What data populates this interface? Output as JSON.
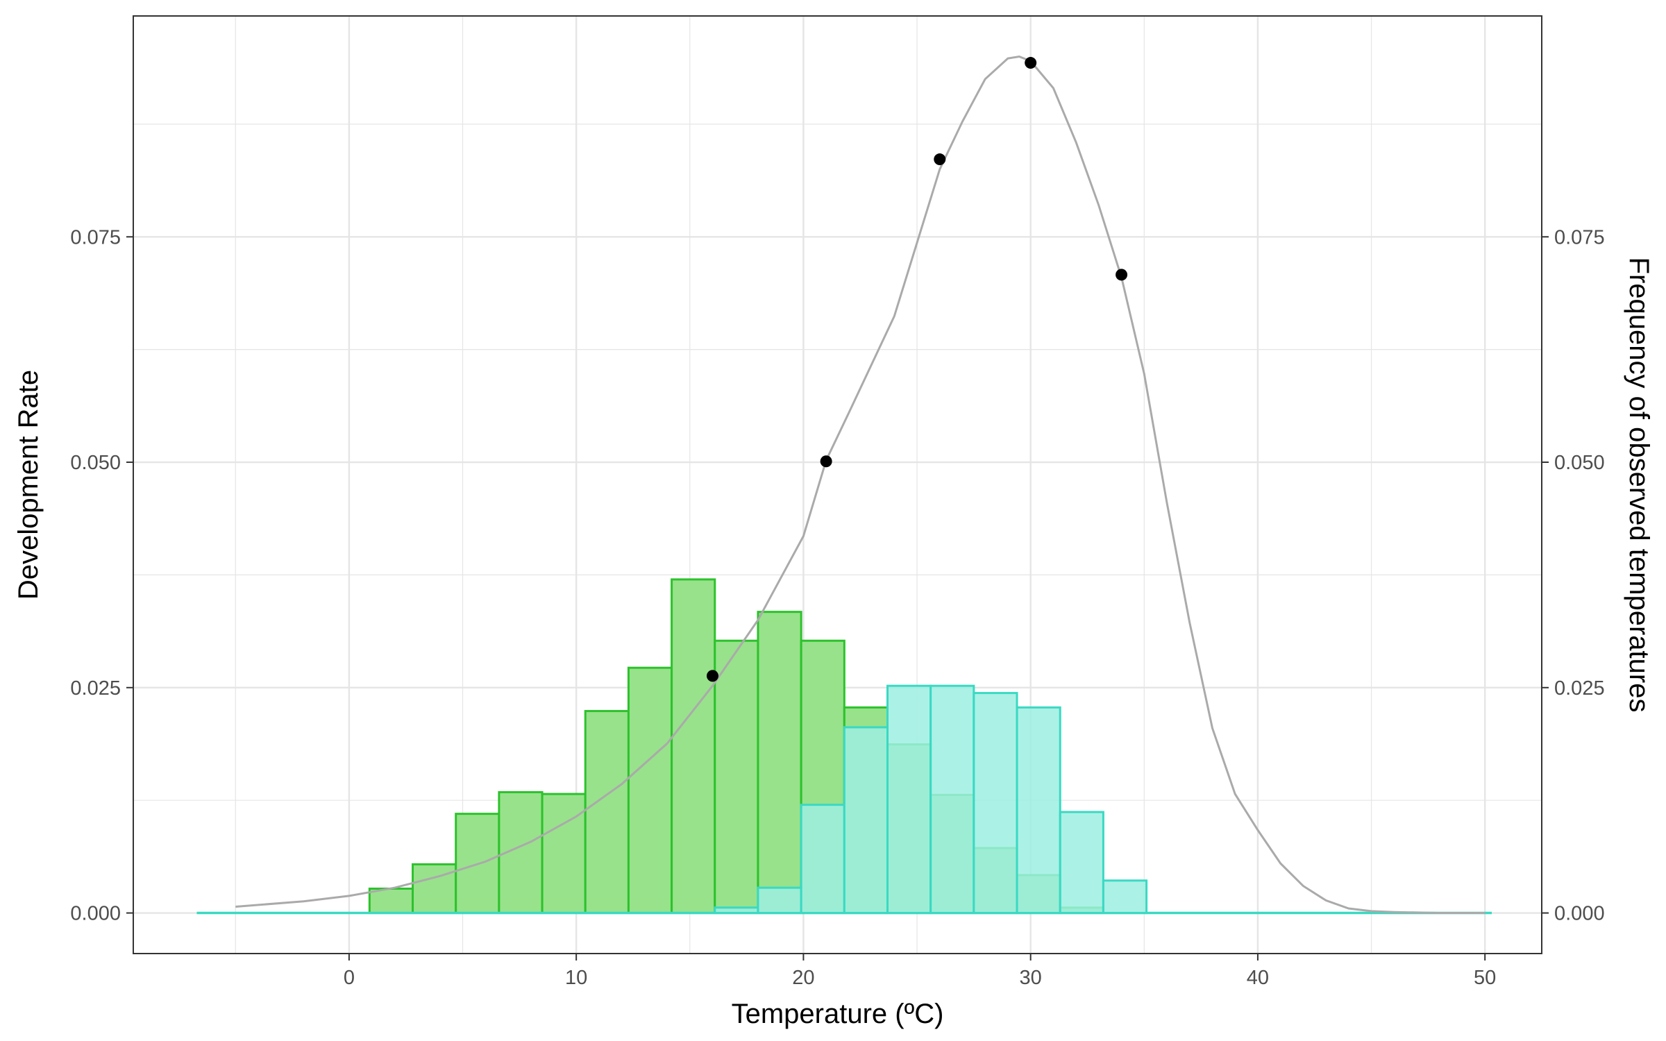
{
  "chart_data": {
    "type": "bar",
    "xlabel": "Temperature (ºC)",
    "ylabel": "Development Rate",
    "y2label": "Frequency of observed temperatures",
    "xlim": [
      -9.5,
      52.5
    ],
    "ylim": [
      -0.0045,
      0.0995
    ],
    "x_ticks": [
      0,
      10,
      20,
      30,
      40,
      50
    ],
    "y_ticks": [
      0.0,
      0.025,
      0.05,
      0.075
    ],
    "y_tick_labels": [
      "0.000",
      "0.025",
      "0.050",
      "0.075"
    ],
    "grid": true,
    "legend": "none",
    "colors": {
      "green_fill": "#98e28b",
      "green_edge": "#2cc22c",
      "cyan_fill": "#9eeee2",
      "cyan_edge": "#3ad9c3",
      "curve": "#aaaaaa",
      "points": "#000000",
      "grid": "#e5e5e5",
      "panel_border": "#333333"
    },
    "series": [
      {
        "type": "histogram",
        "style": "green",
        "bins": [
          [
            -6.7,
            -4.8,
            0
          ],
          [
            -4.8,
            -2.9,
            0
          ],
          [
            -2.9,
            -1.0,
            0
          ],
          [
            -1.0,
            0.9,
            0
          ],
          [
            0.9,
            2.8,
            0.0027
          ],
          [
            2.8,
            4.7,
            0.0054
          ],
          [
            4.7,
            6.6,
            0.011
          ],
          [
            6.6,
            8.5,
            0.0134
          ],
          [
            8.5,
            10.4,
            0.0132
          ],
          [
            10.4,
            12.3,
            0.0224
          ],
          [
            12.3,
            14.2,
            0.0272
          ],
          [
            14.2,
            16.1,
            0.037
          ],
          [
            16.1,
            18.0,
            0.0302
          ],
          [
            18.0,
            19.9,
            0.0334
          ],
          [
            19.9,
            21.8,
            0.0302
          ],
          [
            21.8,
            23.7,
            0.0228
          ],
          [
            23.7,
            25.6,
            0.0187
          ],
          [
            25.6,
            27.5,
            0.0131
          ],
          [
            27.5,
            29.4,
            0.0072
          ],
          [
            29.4,
            31.3,
            0.0042
          ],
          [
            31.3,
            33.2,
            0.0006
          ],
          [
            33.2,
            35.1,
            0
          ]
        ]
      },
      {
        "type": "histogram",
        "style": "cyan",
        "bins": [
          [
            16.1,
            18.0,
            0.0006
          ],
          [
            18.0,
            19.9,
            0.0028
          ],
          [
            19.9,
            21.8,
            0.012
          ],
          [
            21.8,
            23.7,
            0.0206
          ],
          [
            23.7,
            25.6,
            0.0252
          ],
          [
            25.6,
            27.5,
            0.0252
          ],
          [
            27.5,
            29.4,
            0.0244
          ],
          [
            29.4,
            31.3,
            0.0228
          ],
          [
            31.3,
            33.2,
            0.0112
          ],
          [
            33.2,
            35.1,
            0.0036
          ]
        ],
        "baseline": [
          -6.7,
          50.3
        ]
      },
      {
        "type": "line",
        "style": "curve",
        "x": [
          -5,
          -2,
          0,
          2,
          4,
          6,
          8,
          10,
          12,
          14,
          16,
          18,
          20,
          21,
          22,
          24,
          26,
          27,
          28,
          29,
          29.5,
          30,
          31,
          32,
          33,
          34,
          35,
          36,
          37,
          38,
          39,
          40,
          41,
          42,
          43,
          44,
          45,
          46,
          48,
          50
        ],
        "y": [
          0.0007,
          0.0013,
          0.0019,
          0.0028,
          0.0041,
          0.0057,
          0.0079,
          0.0107,
          0.0143,
          0.0188,
          0.0252,
          0.0325,
          0.0418,
          0.0502,
          0.0555,
          0.0662,
          0.0825,
          0.0878,
          0.0925,
          0.0948,
          0.095,
          0.0945,
          0.0915,
          0.0855,
          0.0785,
          0.0705,
          0.0598,
          0.0455,
          0.0322,
          0.0205,
          0.0132,
          0.0092,
          0.0055,
          0.003,
          0.0014,
          0.0005,
          0.0002,
          0.0001,
          0.0,
          0.0
        ]
      },
      {
        "type": "scatter",
        "style": "points",
        "x": [
          16,
          21,
          26,
          30,
          34
        ],
        "y": [
          0.0263,
          0.0501,
          0.0836,
          0.0943,
          0.0708
        ]
      }
    ]
  }
}
